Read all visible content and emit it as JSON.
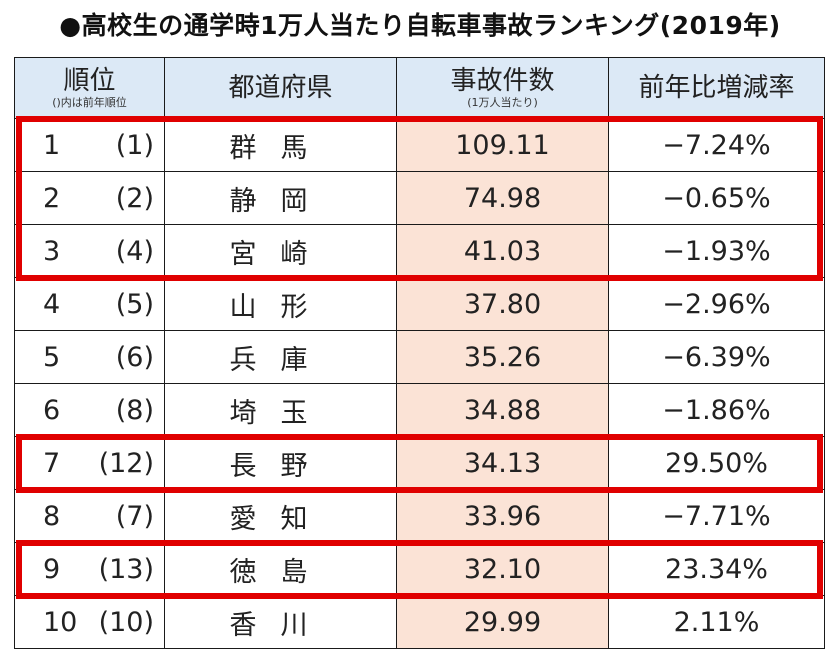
{
  "title": "●高校生の通学時1万人当たり自転車事故ランキング(2019年)",
  "chart_data": {
    "type": "table",
    "title": "●高校生の通学時1万人当たり自転車事故ランキング(2019年)",
    "columns": [
      {
        "label": "順位",
        "sublabel": "()内は前年順位"
      },
      {
        "label": "都道府県",
        "sublabel": ""
      },
      {
        "label": "事故件数",
        "sublabel": "(1万人当たり)"
      },
      {
        "label": "前年比増減率",
        "sublabel": ""
      }
    ],
    "rows": [
      {
        "rank": "1",
        "prev": "(1)",
        "pref": "群馬",
        "count": "109.11",
        "rate": "−7.24%"
      },
      {
        "rank": "2",
        "prev": "(2)",
        "pref": "静岡",
        "count": "74.98",
        "rate": "−0.65%"
      },
      {
        "rank": "3",
        "prev": "(4)",
        "pref": "宮崎",
        "count": "41.03",
        "rate": "−1.93%"
      },
      {
        "rank": "4",
        "prev": "(5)",
        "pref": "山形",
        "count": "37.80",
        "rate": "−2.96%"
      },
      {
        "rank": "5",
        "prev": "(6)",
        "pref": "兵庫",
        "count": "35.26",
        "rate": "−6.39%"
      },
      {
        "rank": "6",
        "prev": "(8)",
        "pref": "埼玉",
        "count": "34.88",
        "rate": "−1.86%"
      },
      {
        "rank": "7",
        "prev": "(12)",
        "pref": "長野",
        "count": "34.13",
        "rate": "29.50%"
      },
      {
        "rank": "8",
        "prev": "(7)",
        "pref": "愛知",
        "count": "33.96",
        "rate": "−7.71%"
      },
      {
        "rank": "9",
        "prev": "(13)",
        "pref": "徳島",
        "count": "32.10",
        "rate": "23.34%"
      },
      {
        "rank": "10",
        "prev": "(10)",
        "pref": "香川",
        "count": "29.99",
        "rate": "2.11%"
      }
    ],
    "highlighted_groups": [
      [
        1,
        2,
        3
      ],
      [
        7
      ],
      [
        9
      ]
    ],
    "colors": {
      "header_bg": "#dce9f6",
      "count_bg": "#fbe3d6",
      "highlight": "#e00000"
    }
  }
}
